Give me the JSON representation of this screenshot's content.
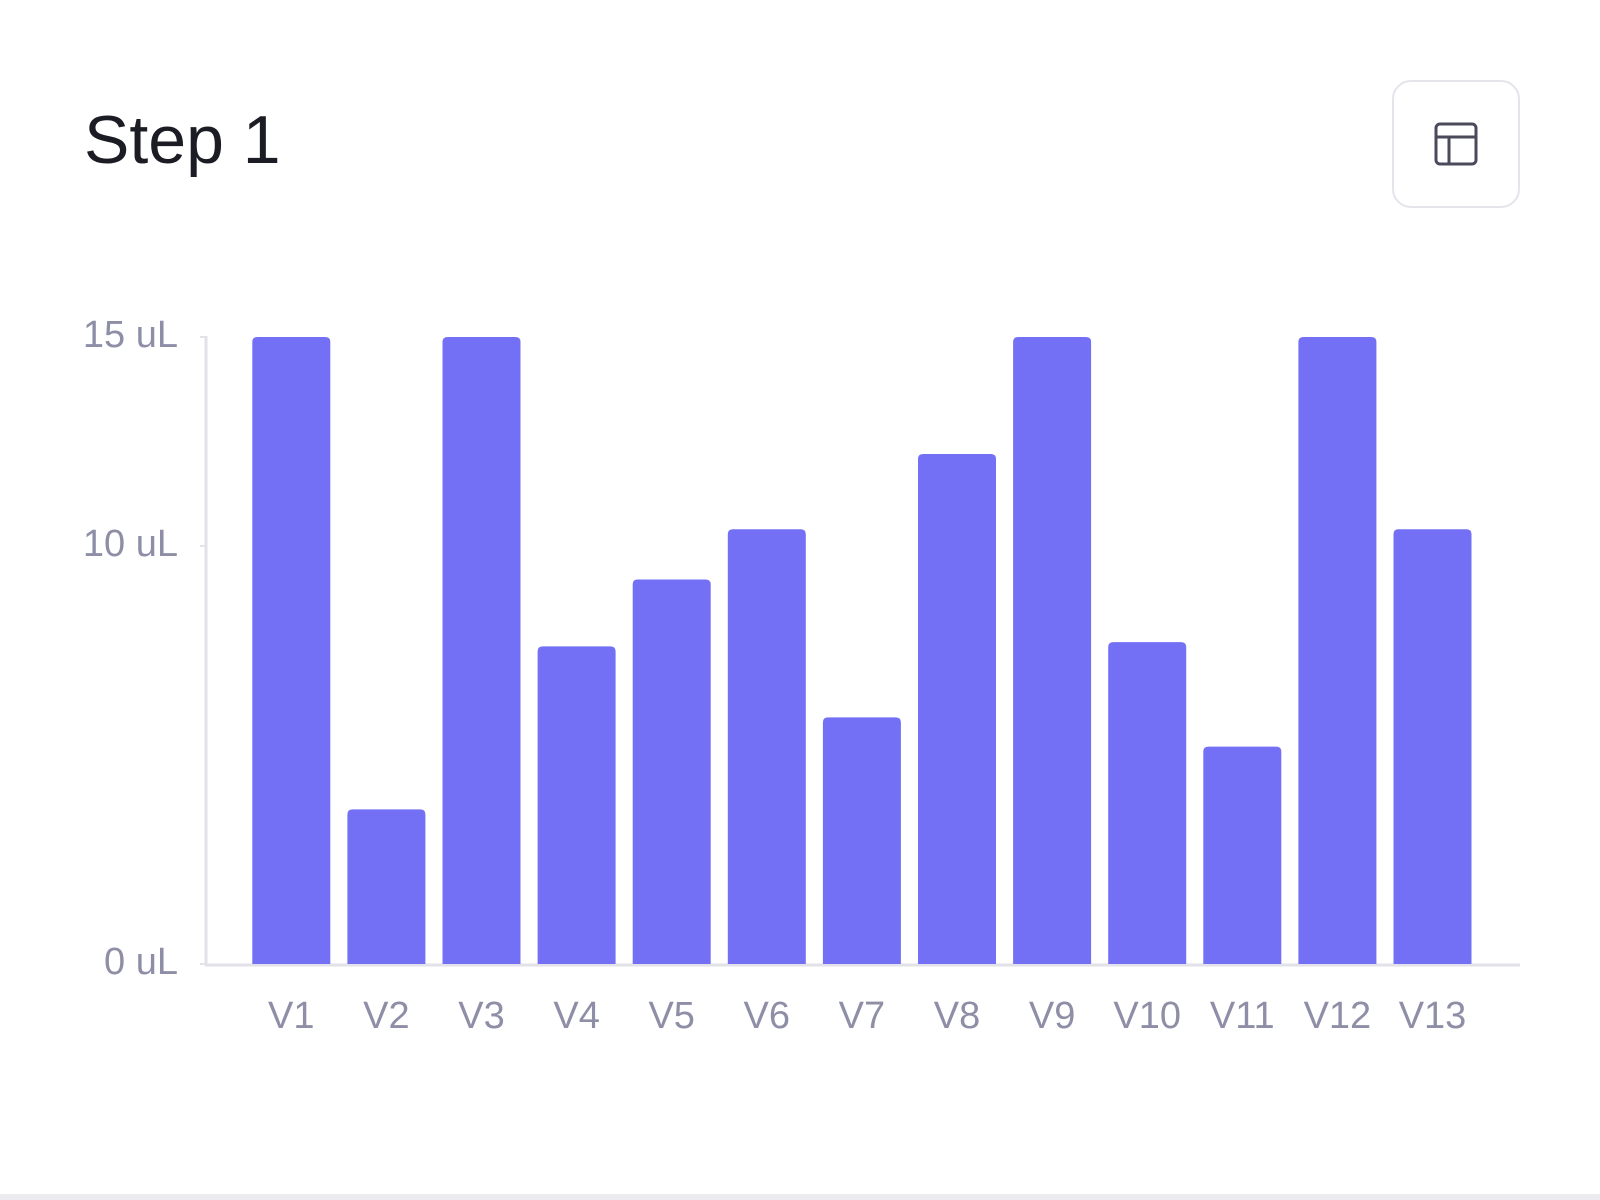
{
  "chart_data": {
    "type": "bar",
    "title": "Step 1",
    "categories": [
      "V1",
      "V2",
      "V3",
      "V4",
      "V5",
      "V6",
      "V7",
      "V8",
      "V9",
      "V10",
      "V11",
      "V12",
      "V13"
    ],
    "values": [
      15,
      3.7,
      15,
      7.6,
      9.2,
      10.4,
      5.9,
      12.2,
      15,
      7.7,
      5.2,
      15,
      10.4
    ],
    "color": "#7370f5",
    "ylim": [
      0,
      15
    ],
    "yticks": [
      {
        "value": 0,
        "label": "0 uL"
      },
      {
        "value": 10,
        "label": "10 uL"
      },
      {
        "value": 15,
        "label": "15 uL"
      }
    ],
    "grid": false
  }
}
